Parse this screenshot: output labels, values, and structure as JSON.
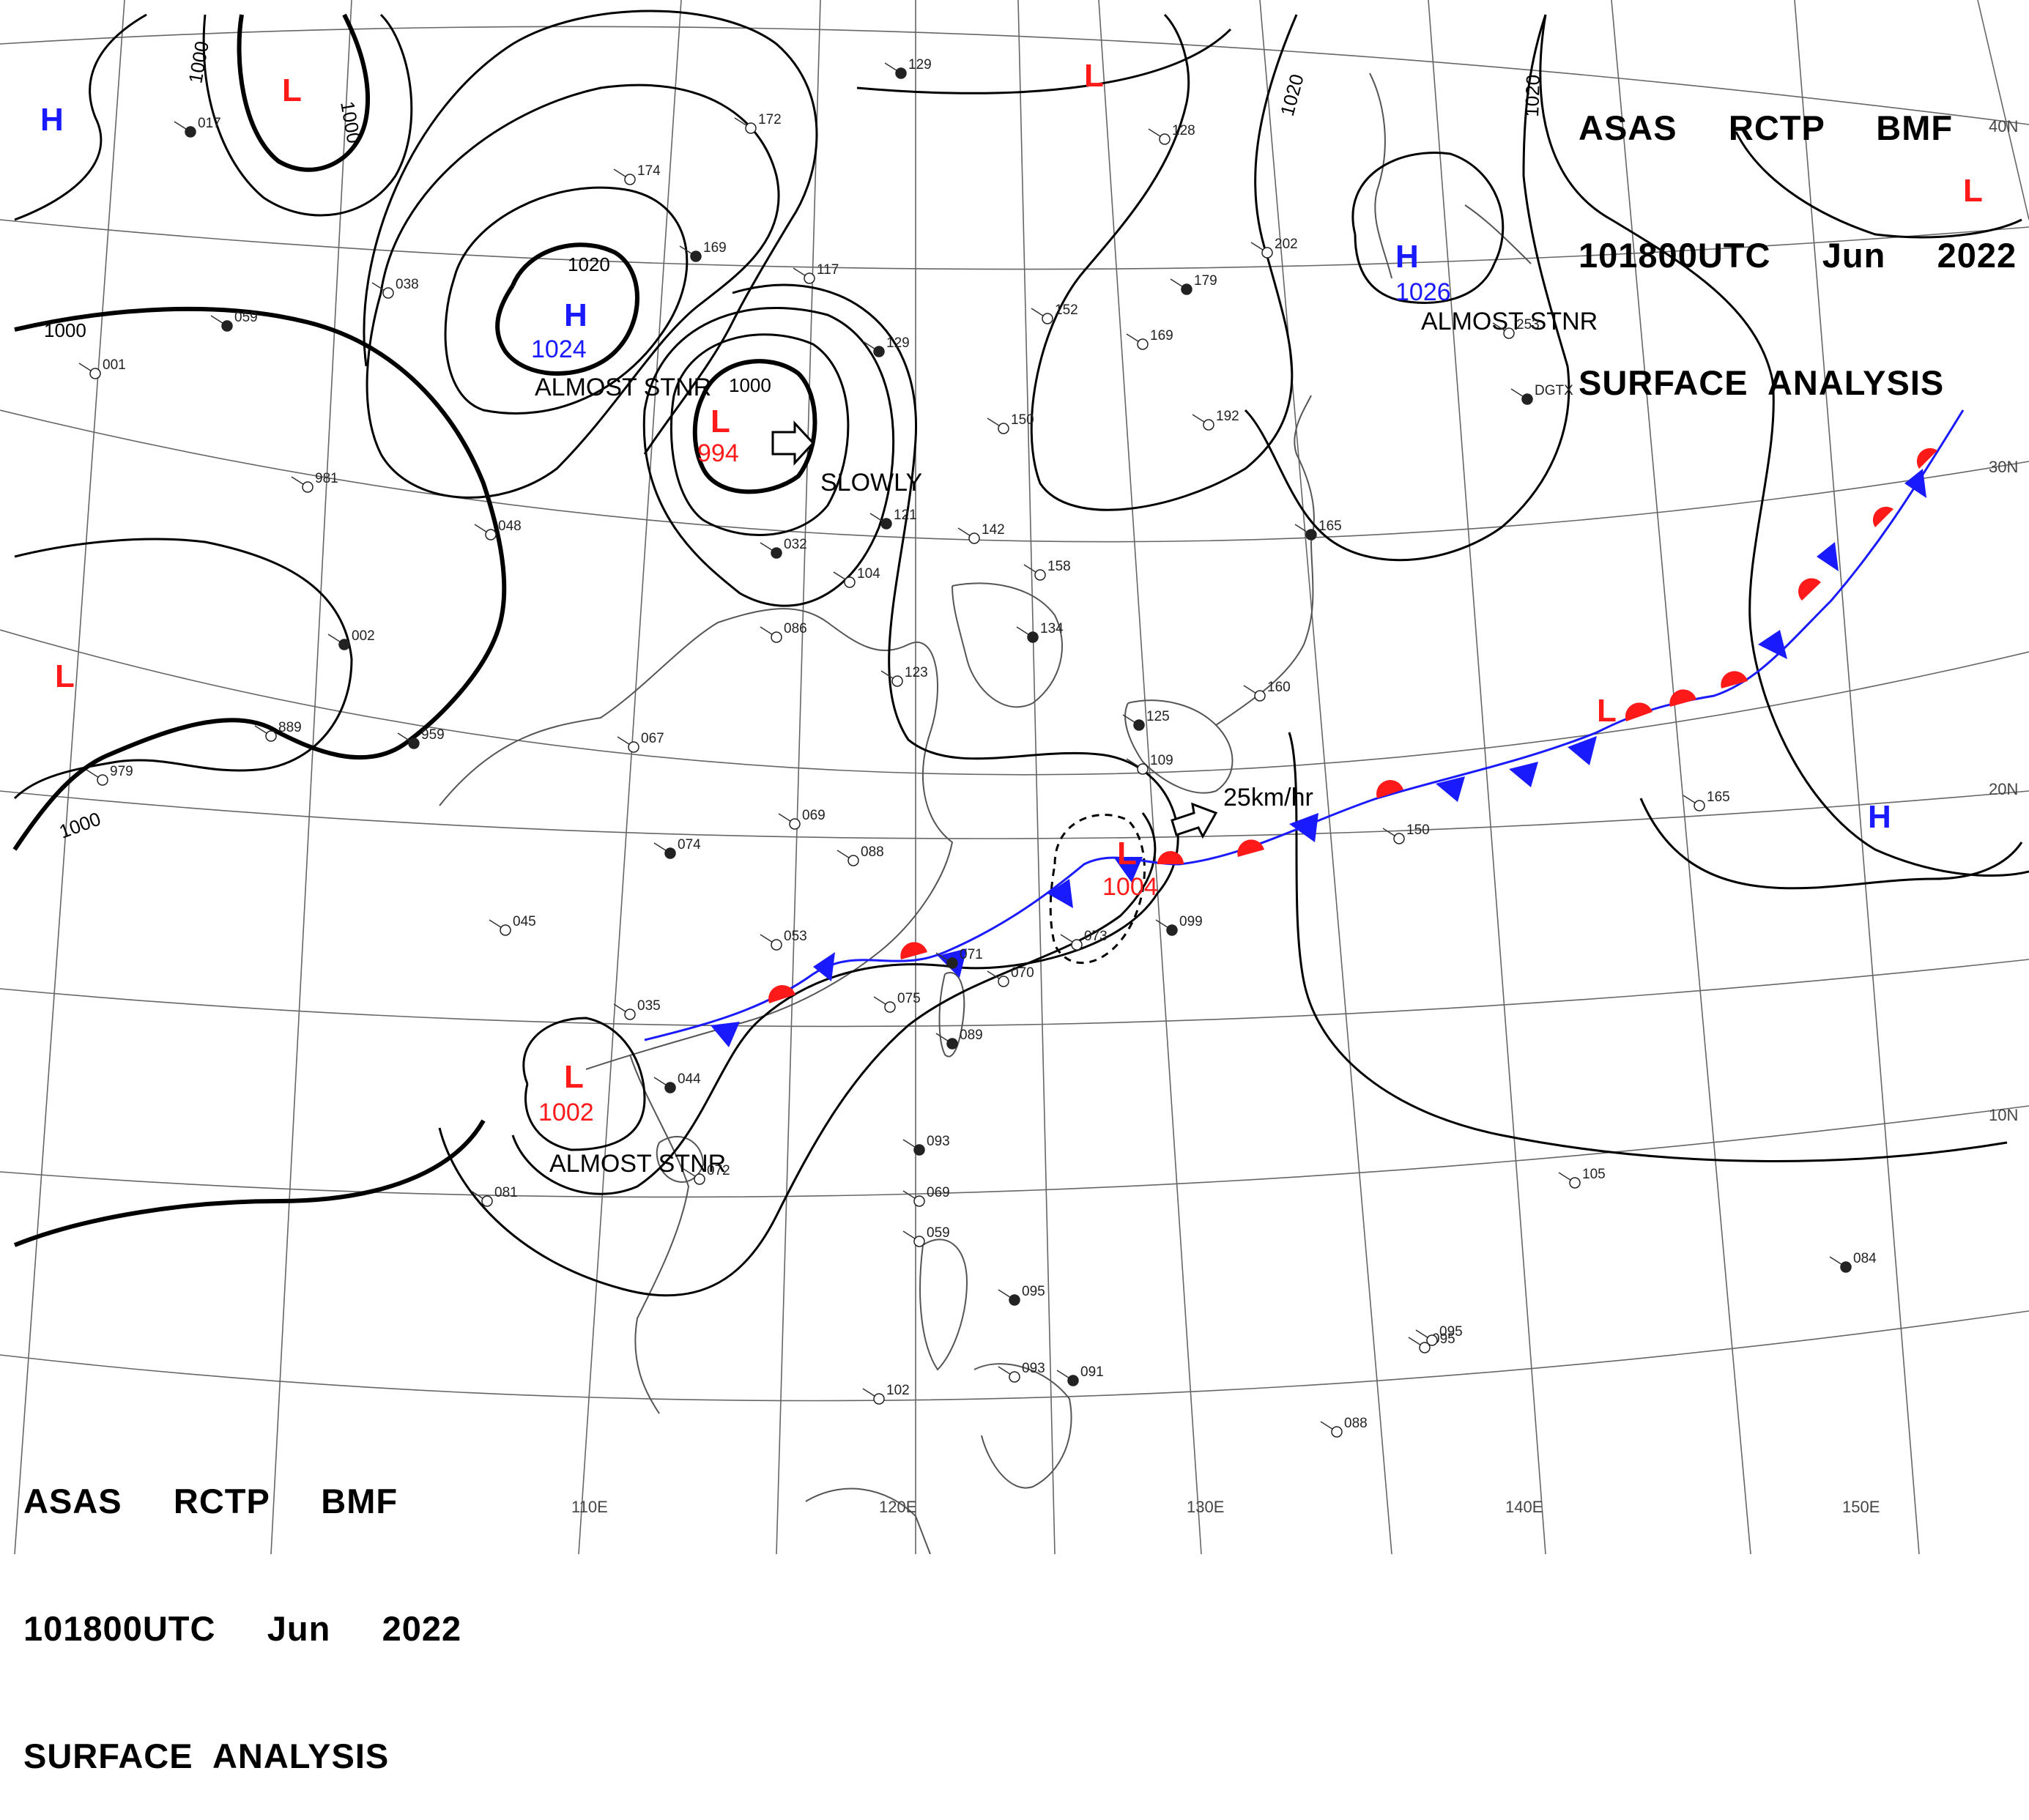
{
  "header": {
    "line1": "ASAS     RCTP     BMF",
    "line2": "101800UTC     Jun     2022",
    "line3": "SURFACE  ANALYSIS"
  },
  "colors": {
    "high": "#1a1aff",
    "low": "#ff1a1a",
    "isobar": "#000000",
    "grid": "#555555",
    "coast": "#555555",
    "cold_front": "#1a1aff",
    "warm_front": "#ff1a1a"
  },
  "longitude_labels": [
    "110E",
    "120E",
    "130E",
    "140E",
    "150E"
  ],
  "latitude_labels": [
    "40N",
    "30N",
    "20N",
    "10N"
  ],
  "isobar_labels": [
    {
      "text": "1000",
      "id": "iso-1000-a"
    },
    {
      "text": "1000",
      "id": "iso-1000-b"
    },
    {
      "text": "1020",
      "id": "iso-1020-a"
    },
    {
      "text": "1000",
      "id": "iso-1000-c"
    },
    {
      "text": "1020",
      "id": "iso-1020-b"
    },
    {
      "text": "1020",
      "id": "iso-1020-c"
    },
    {
      "text": "1000",
      "id": "iso-1000-d"
    },
    {
      "text": "1000",
      "id": "iso-1000-e"
    }
  ],
  "pressure_systems": [
    {
      "type": "H",
      "pressure": "1024",
      "note": "ALMOST STNR"
    },
    {
      "type": "L",
      "pressure": "994",
      "note": "SLOWLY"
    },
    {
      "type": "H",
      "pressure": "1026",
      "note": "ALMOST STNR"
    },
    {
      "type": "L",
      "pressure": "1004",
      "note": "25km/hr"
    },
    {
      "type": "L",
      "pressure": "1002",
      "note": "ALMOST STNR"
    },
    {
      "type": "H",
      "pressure": "",
      "note": ""
    },
    {
      "type": "L",
      "pressure": "",
      "note": ""
    },
    {
      "type": "L",
      "pressure": "",
      "note": ""
    },
    {
      "type": "L",
      "pressure": "",
      "note": ""
    },
    {
      "type": "L",
      "pressure": "",
      "note": ""
    },
    {
      "type": "L",
      "pressure": "",
      "note": ""
    },
    {
      "type": "H",
      "pressure": "",
      "note": ""
    }
  ],
  "station_notes": [
    "129",
    "172",
    "174",
    "169",
    "117",
    "152",
    "129",
    "169",
    "128",
    "179",
    "202",
    "253",
    "DGTX",
    "192",
    "150",
    "121",
    "142",
    "158",
    "134",
    "086",
    "104",
    "032",
    "123",
    "067",
    "959",
    "889",
    "979",
    "002",
    "048",
    "981",
    "059",
    "038",
    "001",
    "017",
    "069",
    "088",
    "074",
    "045",
    "053",
    "071",
    "070",
    "073",
    "099",
    "109",
    "160",
    "165",
    "150",
    "165",
    "089",
    "075",
    "035",
    "044",
    "072",
    "081",
    "093",
    "069",
    "059",
    "095",
    "102",
    "093",
    "091",
    "095",
    "088",
    "084",
    "105",
    "095",
    "125"
  ]
}
